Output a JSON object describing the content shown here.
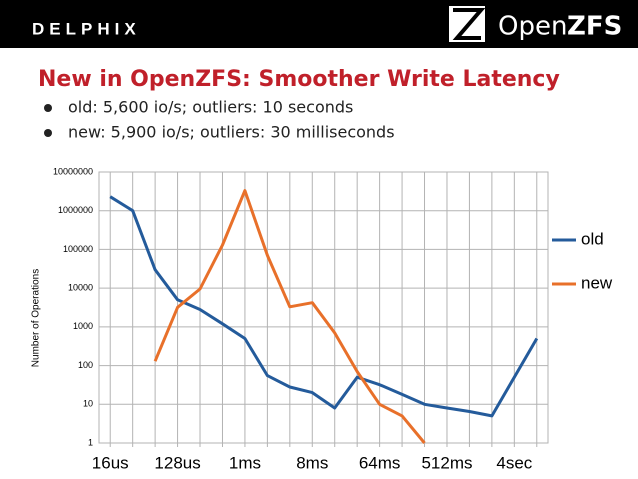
{
  "header": {
    "left_logo": "DELPHIX",
    "right_logo_open": "Open",
    "right_logo_zfs": "ZFS"
  },
  "slide": {
    "title": "New in OpenZFS: Smoother Write Latency",
    "bullets": [
      "old: 5,600 io/s; outliers: 10 seconds",
      "new: 5,900 io/s; outliers: 30 milliseconds"
    ]
  },
  "chart_data": {
    "type": "line",
    "log_scale": true,
    "grid": true,
    "legend": "right",
    "y_label": "Number of Operations",
    "categories": [
      "16us",
      null,
      null,
      "128us",
      null,
      null,
      "1ms",
      null,
      null,
      "8ms",
      null,
      null,
      "64ms",
      null,
      null,
      "512ms",
      null,
      null,
      "4sec",
      null
    ],
    "series": [
      {
        "name": "old",
        "color": "#245b9b",
        "values": [
          2300000,
          1000000,
          30000,
          5000,
          2800,
          1200,
          500,
          55,
          28,
          20,
          8,
          50,
          32,
          18,
          10,
          8,
          6.5,
          5,
          50,
          500
        ]
      },
      {
        "name": "new",
        "color": "#e8702a",
        "values": [
          null,
          null,
          130,
          3200,
          9500,
          130000,
          3300000,
          70000,
          3300,
          4200,
          700,
          70,
          10,
          5,
          1,
          null,
          null,
          null,
          null,
          null
        ]
      }
    ],
    "ylim": [
      1,
      10000000
    ],
    "yticks": [
      1,
      10,
      100,
      1000,
      10000,
      100000,
      1000000,
      10000000
    ]
  }
}
